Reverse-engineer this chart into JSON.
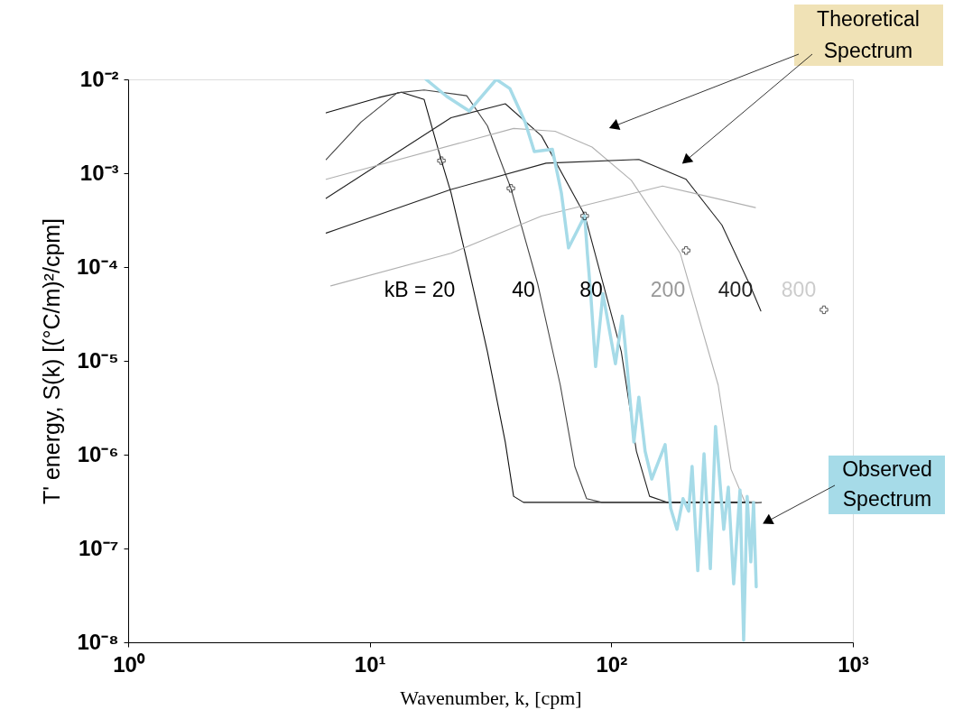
{
  "chart_data": {
    "type": "line",
    "xlabel": "Wavenumber, k, [cpm]",
    "ylabel": "T' energy, S(k) [(°C/m)²/cpm]",
    "log": "xy",
    "grid": false,
    "marker": "none",
    "line_style": "solid",
    "xlim": [
      1,
      1000
    ],
    "ylim": [
      1e-08,
      0.01
    ],
    "xticks": [
      {
        "value": 1,
        "label": "10⁰"
      },
      {
        "value": 10,
        "label": "10¹"
      },
      {
        "value": 100,
        "label": "10²"
      },
      {
        "value": 1000,
        "label": "10³"
      }
    ],
    "yticks": [
      {
        "value": 1e-08,
        "label": "10⁻⁸"
      },
      {
        "value": 1e-07,
        "label": "10⁻⁷"
      },
      {
        "value": 1e-06,
        "label": "10⁻⁶"
      },
      {
        "value": 1e-05,
        "label": "10⁻⁵"
      },
      {
        "value": 0.0001,
        "label": "10⁻⁴"
      },
      {
        "value": 0.001,
        "label": "10⁻³"
      },
      {
        "value": 0.01,
        "label": "10⁻²"
      }
    ],
    "series": [
      {
        "color": "#111111",
        "x": [
          6.6,
          10.9,
          13.5,
          16.8,
          19.8,
          21.7,
          25.8,
          30.7,
          36.4,
          39.4,
          43.3,
          416
        ],
        "values": [
          0.0044,
          0.0064,
          0.0073,
          0.0061,
          0.00136,
          0.00062,
          9.2e-05,
          1.25e-05,
          1.36e-06,
          3.6e-07,
          3.1e-07,
          3.1e-07
        ]
      },
      {
        "color": "#444444",
        "x": [
          6.6,
          9.2,
          13.0,
          16.8,
          25.2,
          30.7,
          38.4,
          49.6,
          61.5,
          70.6,
          79.0,
          91.4,
          416
        ],
        "values": [
          0.0014,
          0.0035,
          0.0072,
          0.0077,
          0.0067,
          0.0032,
          0.00069,
          6.6e-05,
          5.5e-06,
          7.5e-07,
          3.4e-07,
          3.1e-07,
          3.1e-07
        ]
      },
      {
        "color": "#222222",
        "x": [
          6.6,
          21.7,
          36.4,
          51.4,
          77.6,
          110,
          127,
          144,
          171,
          416
        ],
        "values": [
          0.00054,
          0.0039,
          0.0055,
          0.0025,
          0.00036,
          1.25e-05,
          1.09e-06,
          3.6e-07,
          3.1e-07,
          3.1e-07
        ]
      },
      {
        "color": "#b0b0b0",
        "x": [
          6.6,
          39.4,
          58.5,
          83.2,
          121,
          193,
          277,
          313,
          356,
          416
        ],
        "values": [
          0.00086,
          0.003,
          0.0028,
          0.0019,
          0.00084,
          0.00014,
          5.5e-06,
          7e-07,
          3.2e-07,
          3.1e-07
        ]
      },
      {
        "color": "#222222",
        "x": [
          6.6,
          21.7,
          53.7,
          130,
          204,
          287,
          378,
          416
        ],
        "values": [
          0.00023,
          0.00067,
          0.00128,
          0.0014,
          0.00086,
          0.00028,
          6.1e-05,
          3.4e-05
        ]
      },
      {
        "color": "#b0b0b0",
        "x": [
          6.9,
          21.7,
          51.4,
          163,
          395
        ],
        "values": [
          6.3e-05,
          0.00014,
          0.00035,
          0.00073,
          0.00043
        ]
      },
      {
        "color": "#a6dbe8",
        "x": [
          17.1,
          20.8,
          25.8,
          33.4,
          38.0,
          44.0,
          48.0,
          57.0,
          62.1,
          66.5,
          77.6,
          79.6,
          82.4,
          86.1,
          92.3,
          104,
          111,
          114,
          124,
          130,
          138,
          147,
          167,
          176,
          187,
          198,
          209,
          216,
          228,
          242,
          257,
          270,
          292,
          305,
          321,
          341,
          353,
          365,
          378,
          388,
          398
        ],
        "values": [
          0.01,
          0.0066,
          0.0046,
          0.01,
          0.008,
          0.0035,
          0.0017,
          0.0018,
          0.00062,
          0.00016,
          0.00035,
          0.00014,
          4.7e-05,
          8.7e-06,
          5.2e-05,
          9.3e-06,
          3e-05,
          1.5e-05,
          1.36e-06,
          4.1e-06,
          1.09e-06,
          5.5e-07,
          1.28e-06,
          2.7e-07,
          1.6e-07,
          3.4e-07,
          2.5e-07,
          7.5e-07,
          5.8e-08,
          1.02e-06,
          6.1e-08,
          2e-06,
          1.6e-07,
          4.5e-07,
          4.2e-08,
          4.2e-07,
          1.05e-08,
          3.6e-07,
          7.2e-08,
          3.1e-07,
          3.9e-08
        ]
      },
      {
        "type": "scatter",
        "marker": "cross",
        "color": "#111111",
        "x": [
          19.8,
          38.4,
          77.6,
          204,
          759
        ],
        "values": [
          0.00136,
          0.00069,
          0.00035,
          0.00015,
          3.5e-05
        ]
      }
    ],
    "annotations": [
      "kB = 20",
      "40",
      "80",
      "200",
      "400",
      "800",
      "Theoretical Spectrum",
      "Observed Spectrum"
    ]
  }
}
